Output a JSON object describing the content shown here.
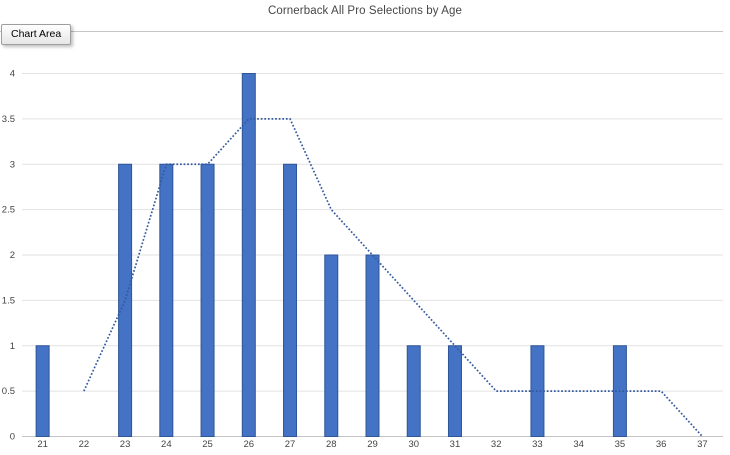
{
  "tooltip": {
    "label": "Chart Area"
  },
  "chart_data": {
    "type": "bar",
    "title": "Cornerback All Pro Selections by Age",
    "xlabel": "",
    "ylabel": "",
    "categories": [
      21,
      22,
      23,
      24,
      25,
      26,
      27,
      28,
      29,
      30,
      31,
      32,
      33,
      34,
      35,
      36,
      37
    ],
    "bar_values": [
      1,
      0,
      3,
      3,
      3,
      4,
      3,
      2,
      2,
      1,
      1,
      0,
      1,
      0,
      1,
      0,
      0
    ],
    "trendline": {
      "style": "dotted",
      "x": [
        22,
        23,
        24,
        25,
        26,
        27,
        28,
        29,
        30,
        31,
        32,
        33,
        34,
        35,
        36,
        37
      ],
      "values": [
        0.5,
        1.5,
        3,
        3,
        3.5,
        3.5,
        2.5,
        2,
        1.5,
        1,
        0.5,
        0.5,
        0.5,
        0.5,
        0.5,
        0
      ]
    },
    "ylim": [
      0,
      4
    ],
    "ytick_step": 0.5,
    "grid": true,
    "legend": false,
    "colors": {
      "bar_fill": "#4472C4",
      "bar_border": "#2E5597",
      "trend": "#33599E",
      "gridline": "#E2E2E2",
      "axis_line": "#C4C4C4",
      "tick_label": "#444444",
      "title": "#474747"
    }
  }
}
